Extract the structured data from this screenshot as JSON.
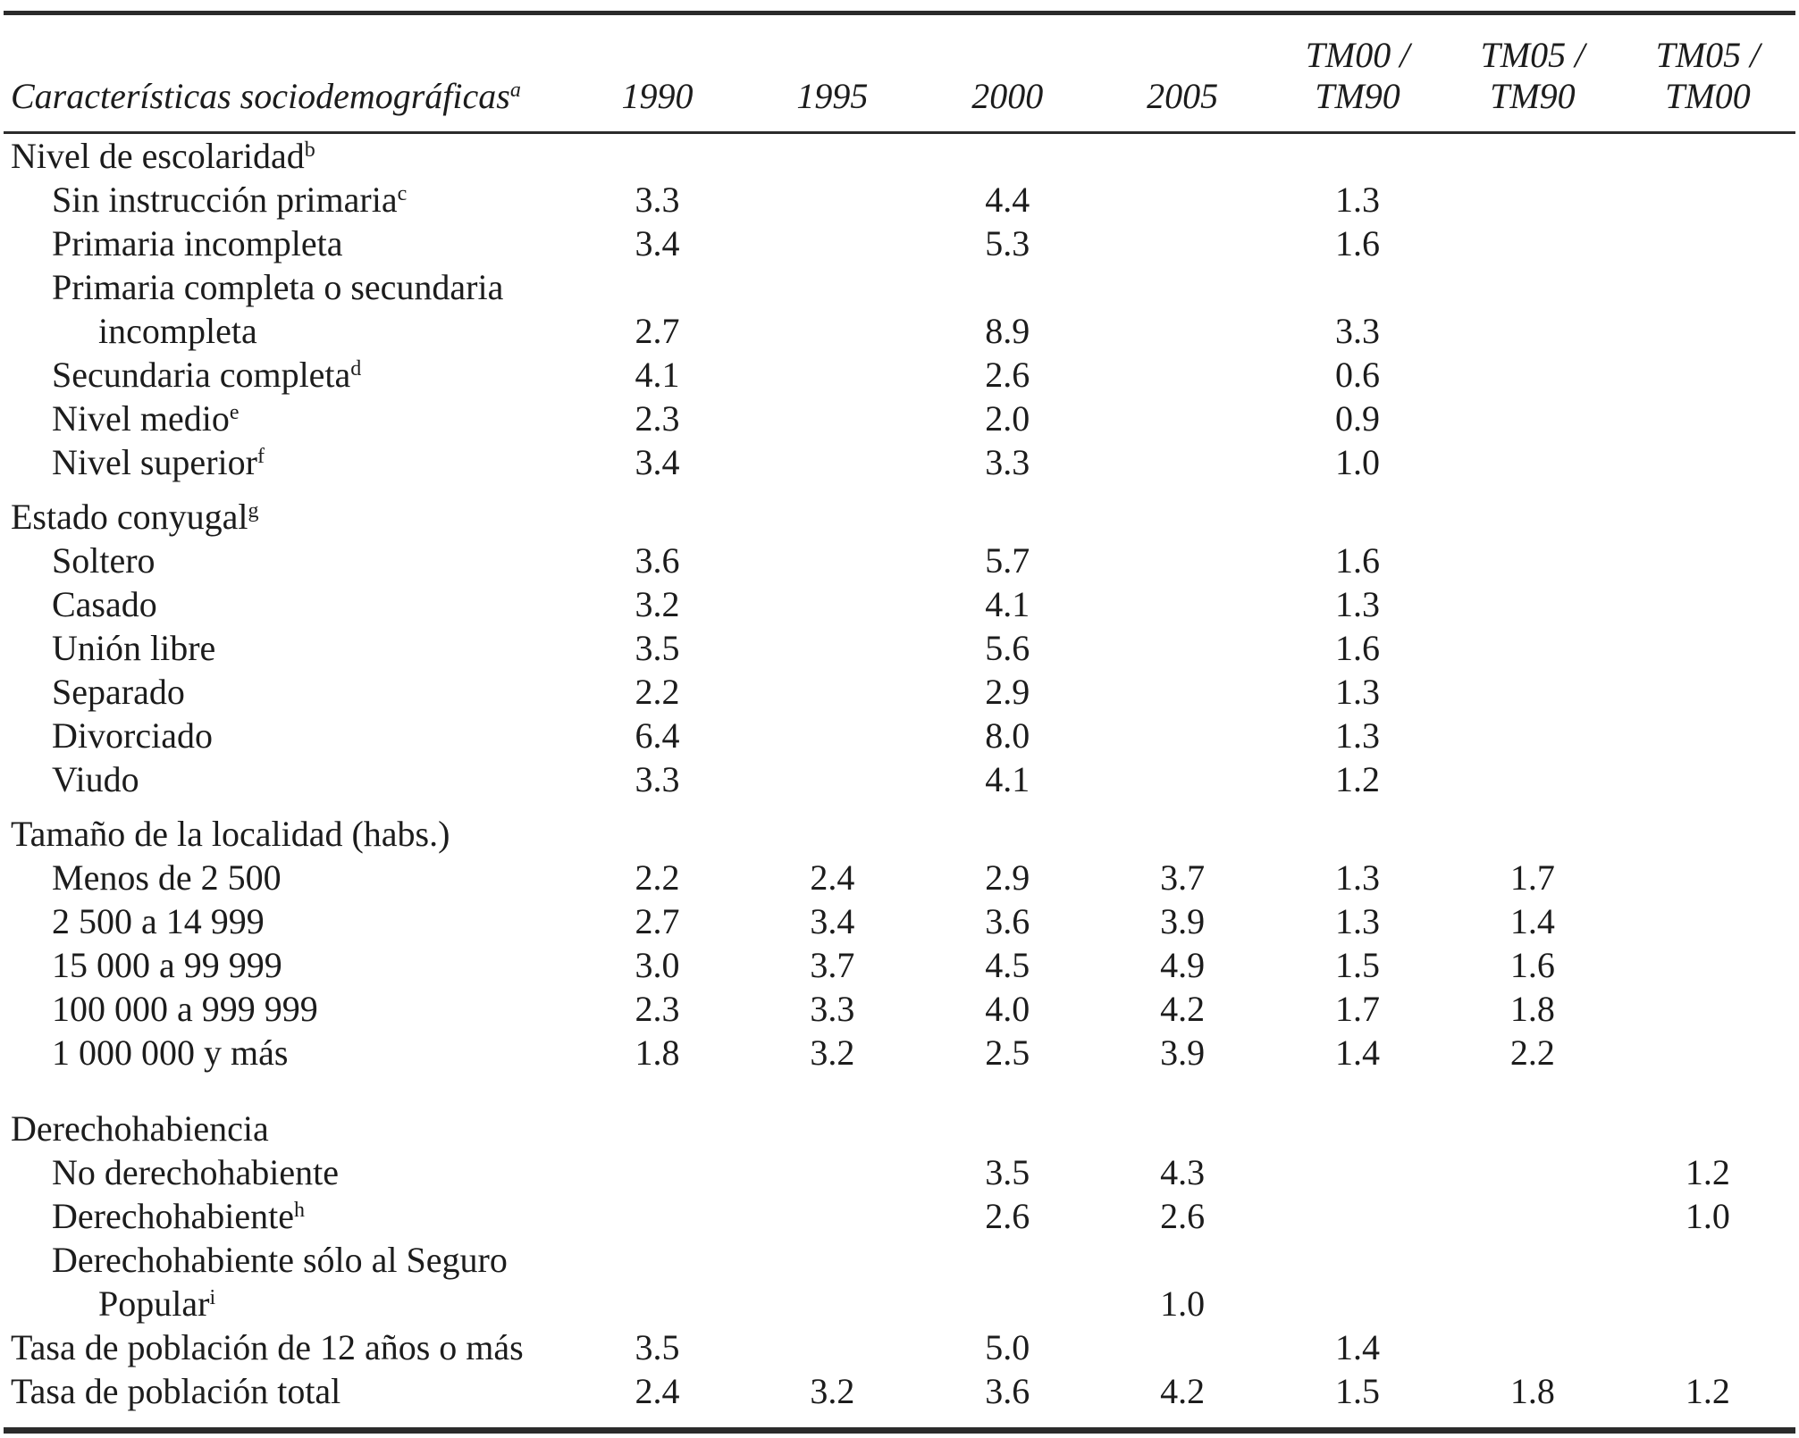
{
  "table": {
    "header": {
      "label": "Características sociodemográficas",
      "label_sup": "a",
      "columns": [
        {
          "line1": "",
          "line2": "1990"
        },
        {
          "line1": "",
          "line2": "1995"
        },
        {
          "line1": "",
          "line2": "2000"
        },
        {
          "line1": "",
          "line2": "2005"
        },
        {
          "line1": "TM00 /",
          "line2": "TM90"
        },
        {
          "line1": "TM05 /",
          "line2": "TM90"
        },
        {
          "line1": "TM05 /",
          "line2": "TM00"
        }
      ]
    },
    "rows": [
      {
        "label": "Nivel de escolaridad",
        "sup": "b",
        "indent": 0,
        "gap": "none",
        "values": [
          "",
          "",
          "",
          "",
          "",
          "",
          ""
        ]
      },
      {
        "label": "Sin instrucción primaria",
        "sup": "c",
        "indent": 1,
        "gap": "none",
        "values": [
          "3.3",
          "",
          "4.4",
          "",
          "1.3",
          "",
          ""
        ]
      },
      {
        "label": "Primaria incompleta",
        "sup": "",
        "indent": 1,
        "gap": "none",
        "values": [
          "3.4",
          "",
          "5.3",
          "",
          "1.6",
          "",
          ""
        ]
      },
      {
        "label": "Primaria completa o secundaria",
        "sup": "",
        "indent": 1,
        "gap": "none",
        "values": [
          "",
          "",
          "",
          "",
          "",
          "",
          ""
        ]
      },
      {
        "label": "incompleta",
        "sup": "",
        "indent": 2,
        "gap": "none",
        "values": [
          "2.7",
          "",
          "8.9",
          "",
          "3.3",
          "",
          ""
        ]
      },
      {
        "label": "Secundaria completa",
        "sup": "d",
        "indent": 1,
        "gap": "none",
        "values": [
          "4.1",
          "",
          "2.6",
          "",
          "0.6",
          "",
          ""
        ]
      },
      {
        "label": "Nivel medio",
        "sup": "e",
        "indent": 1,
        "gap": "none",
        "values": [
          "2.3",
          "",
          "2.0",
          "",
          "0.9",
          "",
          ""
        ]
      },
      {
        "label": "Nivel superior",
        "sup": "f",
        "indent": 1,
        "gap": "none",
        "values": [
          "3.4",
          "",
          "3.3",
          "",
          "1.0",
          "",
          ""
        ]
      },
      {
        "label": "Estado conyugal",
        "sup": "g",
        "indent": 0,
        "gap": "small",
        "values": [
          "",
          "",
          "",
          "",
          "",
          "",
          ""
        ]
      },
      {
        "label": "Soltero",
        "sup": "",
        "indent": 1,
        "gap": "none",
        "values": [
          "3.6",
          "",
          "5.7",
          "",
          "1.6",
          "",
          ""
        ]
      },
      {
        "label": "Casado",
        "sup": "",
        "indent": 1,
        "gap": "none",
        "values": [
          "3.2",
          "",
          "4.1",
          "",
          "1.3",
          "",
          ""
        ]
      },
      {
        "label": "Unión libre",
        "sup": "",
        "indent": 1,
        "gap": "none",
        "values": [
          "3.5",
          "",
          "5.6",
          "",
          "1.6",
          "",
          ""
        ]
      },
      {
        "label": "Separado",
        "sup": "",
        "indent": 1,
        "gap": "none",
        "values": [
          "2.2",
          "",
          "2.9",
          "",
          "1.3",
          "",
          ""
        ]
      },
      {
        "label": "Divorciado",
        "sup": "",
        "indent": 1,
        "gap": "none",
        "values": [
          "6.4",
          "",
          "8.0",
          "",
          "1.3",
          "",
          ""
        ]
      },
      {
        "label": "Viudo",
        "sup": "",
        "indent": 1,
        "gap": "none",
        "values": [
          "3.3",
          "",
          "4.1",
          "",
          "1.2",
          "",
          ""
        ]
      },
      {
        "label": "Tamaño de la localidad (habs.)",
        "sup": "",
        "indent": 0,
        "gap": "small",
        "values": [
          "",
          "",
          "",
          "",
          "",
          "",
          ""
        ]
      },
      {
        "label": "Menos de 2 500",
        "sup": "",
        "indent": 1,
        "gap": "none",
        "values": [
          "2.2",
          "2.4",
          "2.9",
          "3.7",
          "1.3",
          "1.7",
          ""
        ]
      },
      {
        "label": "2 500 a 14 999",
        "sup": "",
        "indent": 1,
        "gap": "none",
        "values": [
          "2.7",
          "3.4",
          "3.6",
          "3.9",
          "1.3",
          "1.4",
          ""
        ]
      },
      {
        "label": "15 000 a 99 999",
        "sup": "",
        "indent": 1,
        "gap": "none",
        "values": [
          "3.0",
          "3.7",
          "4.5",
          "4.9",
          "1.5",
          "1.6",
          ""
        ]
      },
      {
        "label": "100 000 a 999 999",
        "sup": "",
        "indent": 1,
        "gap": "none",
        "values": [
          "2.3",
          "3.3",
          "4.0",
          "4.2",
          "1.7",
          "1.8",
          ""
        ]
      },
      {
        "label": "1 000 000 y más",
        "sup": "",
        "indent": 1,
        "gap": "none",
        "values": [
          "1.8",
          "3.2",
          "2.5",
          "3.9",
          "1.4",
          "2.2",
          ""
        ]
      },
      {
        "label": "Derechohabiencia",
        "sup": "",
        "indent": 0,
        "gap": "large",
        "values": [
          "",
          "",
          "",
          "",
          "",
          "",
          ""
        ]
      },
      {
        "label": "No derechohabiente",
        "sup": "",
        "indent": 1,
        "gap": "none",
        "values": [
          "",
          "",
          "3.5",
          "4.3",
          "",
          "",
          "1.2"
        ]
      },
      {
        "label": "Derechohabiente",
        "sup": "h",
        "indent": 1,
        "gap": "none",
        "values": [
          "",
          "",
          "2.6",
          "2.6",
          "",
          "",
          "1.0"
        ]
      },
      {
        "label": "Derechohabiente sólo al Seguro",
        "sup": "",
        "indent": 1,
        "gap": "none",
        "values": [
          "",
          "",
          "",
          "",
          "",
          "",
          ""
        ]
      },
      {
        "label": "Popular",
        "sup": "i",
        "indent": 2,
        "gap": "none",
        "values": [
          "",
          "",
          "",
          "1.0",
          "",
          "",
          ""
        ]
      },
      {
        "label": "Tasa de población de 12 años o más",
        "sup": "",
        "indent": 0,
        "gap": "none",
        "values": [
          "3.5",
          "",
          "5.0",
          "",
          "1.4",
          "",
          ""
        ]
      },
      {
        "label": "Tasa de población total",
        "sup": "",
        "indent": 0,
        "gap": "none",
        "values": [
          "2.4",
          "3.2",
          "3.6",
          "4.2",
          "1.5",
          "1.8",
          "1.2"
        ]
      }
    ]
  }
}
